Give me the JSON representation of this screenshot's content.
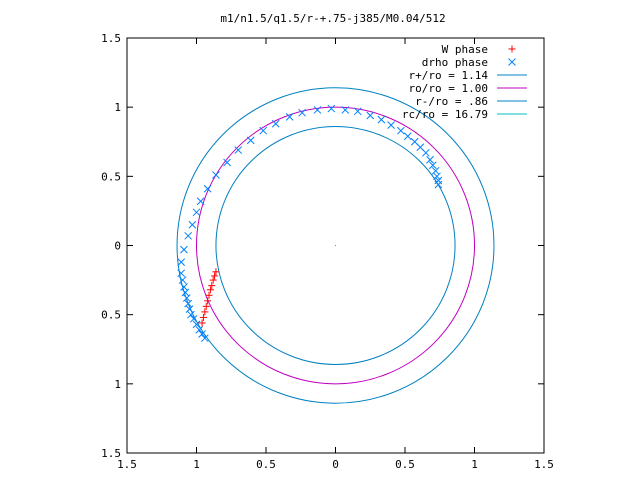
{
  "chart_data": {
    "type": "scatter",
    "title": "m1/n1.5/q1.5/r-+.75-j385/M0.04/512",
    "xlabel": "",
    "ylabel": "",
    "xlim": [
      -1.5,
      1.5
    ],
    "ylim": [
      -1.5,
      1.5
    ],
    "xticks": [
      -1.5,
      -1,
      -0.5,
      0,
      0.5,
      1,
      1.5
    ],
    "yticks": [
      -1.5,
      -1,
      -0.5,
      0,
      0.5,
      1,
      1.5
    ],
    "xtick_labels": [
      "1.5",
      "1",
      "0.5",
      "0",
      "0.5",
      "1",
      "1.5"
    ],
    "ytick_labels": [
      "1.5",
      "1",
      "0.5",
      "0",
      "0.5",
      "1",
      "1.5"
    ],
    "grid": false,
    "legend_position": "top-right",
    "series": [
      {
        "name": "W phase",
        "kind": "points",
        "marker": "plus",
        "color": "#ff0000",
        "x": [
          -0.96,
          -0.95,
          -0.94,
          -0.93,
          -0.92,
          -0.91,
          -0.9,
          -0.89,
          -0.88,
          -0.87,
          -0.86
        ],
        "y": [
          -0.56,
          -0.52,
          -0.48,
          -0.44,
          -0.4,
          -0.36,
          -0.32,
          -0.29,
          -0.25,
          -0.22,
          -0.19
        ]
      },
      {
        "name": "drho phase",
        "kind": "points",
        "marker": "cross",
        "color": "#0080ff",
        "x": [
          -0.94,
          -0.96,
          -0.98,
          -1.0,
          -1.02,
          -1.04,
          -1.05,
          -1.06,
          -1.07,
          -1.08,
          -1.09,
          -1.1,
          -1.11,
          -1.11,
          -1.09,
          -1.06,
          -1.03,
          -1.0,
          -0.97,
          -0.92,
          -0.86,
          -0.78,
          -0.7,
          -0.61,
          -0.52,
          -0.43,
          -0.33,
          -0.24,
          -0.13,
          -0.03,
          0.07,
          0.16,
          0.25,
          0.33,
          0.4,
          0.47,
          0.52,
          0.57,
          0.61,
          0.65,
          0.68,
          0.7,
          0.72,
          0.73,
          0.74,
          0.74
        ],
        "y": [
          -0.67,
          -0.64,
          -0.61,
          -0.57,
          -0.53,
          -0.5,
          -0.46,
          -0.42,
          -0.38,
          -0.34,
          -0.3,
          -0.25,
          -0.2,
          -0.12,
          -0.03,
          0.07,
          0.15,
          0.24,
          0.32,
          0.41,
          0.51,
          0.6,
          0.69,
          0.76,
          0.83,
          0.88,
          0.93,
          0.96,
          0.98,
          0.99,
          0.98,
          0.97,
          0.94,
          0.91,
          0.87,
          0.83,
          0.79,
          0.75,
          0.71,
          0.67,
          0.62,
          0.58,
          0.54,
          0.5,
          0.47,
          0.44
        ]
      },
      {
        "name": "r+/ro = 1.14",
        "kind": "circle",
        "radius": 1.14,
        "color": "#0080c0"
      },
      {
        "name": "ro/ro = 1.00",
        "kind": "circle",
        "radius": 1.0,
        "color": "#c000c0"
      },
      {
        "name": "r-/ro = .86",
        "kind": "circle",
        "radius": 0.86,
        "color": "#0080c0"
      },
      {
        "name": "rc/ro = 16.79",
        "kind": "circle",
        "radius": 16.79,
        "color": "#00c0c0"
      }
    ]
  }
}
